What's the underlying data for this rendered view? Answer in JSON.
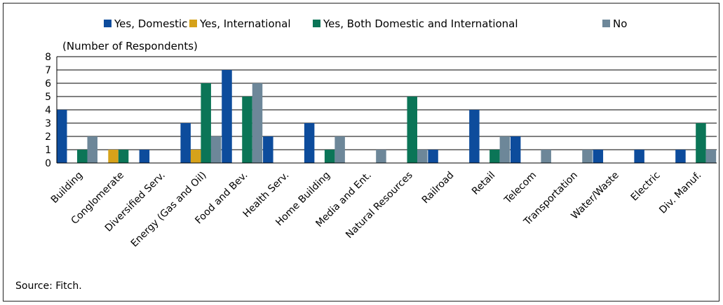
{
  "chart_data": {
    "type": "bar",
    "unit_label": "(Number of Respondents)",
    "source": "Source: Fitch.",
    "ylim": [
      0,
      8
    ],
    "yticks": [
      0,
      1,
      2,
      3,
      4,
      5,
      6,
      7,
      8
    ],
    "grid": true,
    "legend_position": "top",
    "categories": [
      "Building",
      "Conglomerate",
      "Diversified Serv.",
      "Energy (Gas and Oil)",
      "Food and Bev.",
      "Health Serv.",
      "Home Building",
      "Media and Ent.",
      "Natural Resources",
      "Railroad",
      "Retail",
      "Telecom",
      "Transportation",
      "Water/Waste",
      "Electric",
      "Div. Manuf."
    ],
    "series": [
      {
        "name": "Yes, Domestic",
        "color": "#0d4c9c",
        "values": [
          4,
          0,
          1,
          3,
          7,
          2,
          3,
          0,
          0,
          1,
          4,
          2,
          0,
          1,
          1,
          1
        ]
      },
      {
        "name": "Yes, International",
        "color": "#d6a21a",
        "values": [
          0,
          1,
          0,
          1,
          0,
          0,
          0,
          0,
          0,
          0,
          0,
          0,
          0,
          0,
          0,
          0
        ]
      },
      {
        "name": "Yes, Both Domestic and International",
        "color": "#0b7557",
        "values": [
          1,
          1,
          0,
          6,
          5,
          0,
          1,
          0,
          5,
          0,
          1,
          0,
          0,
          0,
          0,
          3
        ]
      },
      {
        "name": "No",
        "color": "#6d8799",
        "values": [
          2,
          0,
          0,
          2,
          6,
          0,
          2,
          1,
          1,
          0,
          2,
          1,
          1,
          0,
          0,
          1
        ]
      }
    ]
  }
}
